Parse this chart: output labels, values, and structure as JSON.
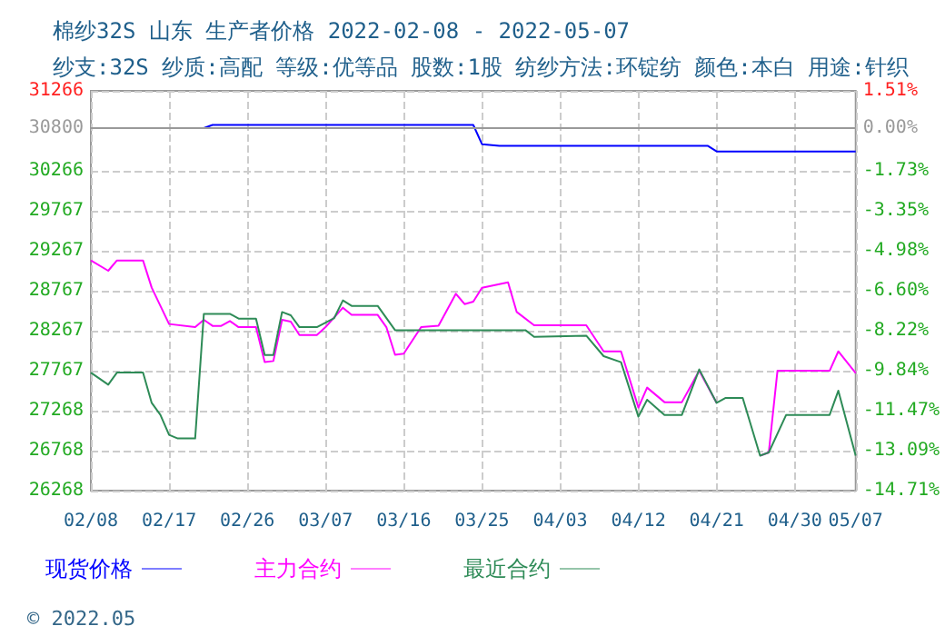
{
  "chart_data": {
    "type": "line",
    "title": "棉纱32S 山东 生产者价格 2022-02-08 - 2022-05-07",
    "subtitle": "纱支:32S 纱质:高配 等级:优等品 股数:1股 纺纱方法:环锭纺 颜色:本白 用途:针织",
    "annotations": [
      "© 2022.05"
    ],
    "xlim": [
      "2022-02-08",
      "2022-05-07"
    ],
    "xticks": [
      {
        "value": "2022-02-08",
        "label": "02/08"
      },
      {
        "value": "2022-02-17",
        "label": "02/17"
      },
      {
        "value": "2022-02-26",
        "label": "02/26"
      },
      {
        "value": "2022-03-07",
        "label": "03/07"
      },
      {
        "value": "2022-03-16",
        "label": "03/16"
      },
      {
        "value": "2022-03-25",
        "label": "03/25"
      },
      {
        "value": "2022-04-03",
        "label": "04/03"
      },
      {
        "value": "2022-04-12",
        "label": "04/12"
      },
      {
        "value": "2022-04-21",
        "label": "04/21"
      },
      {
        "value": "2022-04-30",
        "label": "04/30"
      },
      {
        "value": "2022-05-07",
        "label": "05/07"
      }
    ],
    "ylim": [
      26268,
      31266
    ],
    "yticks": [
      26268,
      26768,
      27268,
      27767,
      28267,
      28767,
      29267,
      29767,
      30266,
      30800,
      31266
    ],
    "y2lim": [
      -14.71,
      1.51
    ],
    "y2ticks": [
      {
        "value": -14.71,
        "label": "-14.71%"
      },
      {
        "value": -13.09,
        "label": "-13.09%"
      },
      {
        "value": -11.47,
        "label": "-11.47%"
      },
      {
        "value": -9.84,
        "label": "-9.84%"
      },
      {
        "value": -8.22,
        "label": "-8.22%"
      },
      {
        "value": -6.6,
        "label": "-6.60%"
      },
      {
        "value": -4.98,
        "label": "-4.98%"
      },
      {
        "value": -3.35,
        "label": "-3.35%"
      },
      {
        "value": -1.73,
        "label": "-1.73%"
      },
      {
        "value": 0,
        "label": "0.00%"
      },
      {
        "value": 1.51,
        "label": "1.51%"
      }
    ],
    "ref_lines": [
      {
        "axis": "y",
        "value": 30800,
        "color": "#999999"
      }
    ],
    "grid": true,
    "legend": "bottom",
    "marker": "none",
    "line_style": "solid",
    "series": [
      {
        "name": "现货价格",
        "color": "#0000ff",
        "x": [
          "2022-02-08",
          "2022-02-21",
          "2022-02-22",
          "2022-03-24",
          "2022-03-25",
          "2022-03-27",
          "2022-04-20",
          "2022-04-21",
          "2022-05-07"
        ],
        "values": [
          30800,
          30800,
          30840,
          30840,
          30600,
          30578,
          30578,
          30509,
          30509
        ]
      },
      {
        "name": "主力合约",
        "color": "#ff00ff",
        "x": [
          "2022-02-08",
          "2022-02-10",
          "2022-02-11",
          "2022-02-14",
          "2022-02-15",
          "2022-02-17",
          "2022-02-20",
          "2022-02-21",
          "2022-02-22",
          "2022-02-23",
          "2022-02-24",
          "2022-02-25",
          "2022-02-27",
          "2022-02-28",
          "2022-03-01",
          "2022-03-02",
          "2022-03-03",
          "2022-03-04",
          "2022-03-06",
          "2022-03-07",
          "2022-03-09",
          "2022-03-10",
          "2022-03-13",
          "2022-03-14",
          "2022-03-15",
          "2022-03-16",
          "2022-03-18",
          "2022-03-20",
          "2022-03-22",
          "2022-03-23",
          "2022-03-24",
          "2022-03-25",
          "2022-03-28",
          "2022-03-29",
          "2022-03-31",
          "2022-04-06",
          "2022-04-08",
          "2022-04-10",
          "2022-04-12",
          "2022-04-13",
          "2022-04-15",
          "2022-04-17",
          "2022-04-19",
          "2022-04-21",
          "2022-04-22",
          "2022-04-24",
          "2022-04-26",
          "2022-04-27",
          "2022-04-28",
          "2022-05-04",
          "2022-05-05",
          "2022-05-07"
        ],
        "values": [
          29146,
          29017,
          29146,
          29146,
          28805,
          28351,
          28312,
          28403,
          28328,
          28328,
          28388,
          28312,
          28312,
          27874,
          27888,
          28403,
          28380,
          28214,
          28214,
          28312,
          28555,
          28465,
          28465,
          28312,
          27966,
          27980,
          28312,
          28330,
          28729,
          28600,
          28630,
          28805,
          28873,
          28501,
          28335,
          28335,
          28009,
          28009,
          27306,
          27556,
          27374,
          27374,
          27767,
          27365,
          null,
          null,
          26706,
          26745,
          27767,
          27767,
          28009,
          27738
        ]
      },
      {
        "name": "最近合约",
        "color": "#2e8b57",
        "x": [
          "2022-02-08",
          "2022-02-10",
          "2022-02-11",
          "2022-02-14",
          "2022-02-15",
          "2022-02-16",
          "2022-02-17",
          "2022-02-18",
          "2022-02-20",
          "2022-02-21",
          "2022-02-24",
          "2022-02-25",
          "2022-02-27",
          "2022-02-28",
          "2022-03-01",
          "2022-03-02",
          "2022-03-03",
          "2022-03-04",
          "2022-03-06",
          "2022-03-08",
          "2022-03-09",
          "2022-03-10",
          "2022-03-13",
          "2022-03-15",
          "2022-03-30",
          "2022-03-31",
          "2022-04-06",
          "2022-04-08",
          "2022-04-10",
          "2022-04-12",
          "2022-04-13",
          "2022-04-15",
          "2022-04-17",
          "2022-04-19",
          "2022-04-21",
          "2022-04-22",
          "2022-04-24",
          "2022-04-26",
          "2022-04-27",
          "2022-04-29",
          "2022-05-04",
          "2022-05-05",
          "2022-05-07"
        ],
        "values": [
          27744,
          27592,
          27744,
          27744,
          27365,
          27215,
          26965,
          26920,
          26920,
          28478,
          28478,
          28418,
          28418,
          27964,
          27964,
          28501,
          28460,
          28312,
          28312,
          28426,
          28646,
          28578,
          28578,
          28274,
          28274,
          28190,
          28205,
          27949,
          27874,
          27192,
          27404,
          27215,
          27215,
          27783,
          27365,
          27426,
          27426,
          26706,
          26745,
          27215,
          27215,
          27517,
          26706
        ]
      }
    ]
  }
}
